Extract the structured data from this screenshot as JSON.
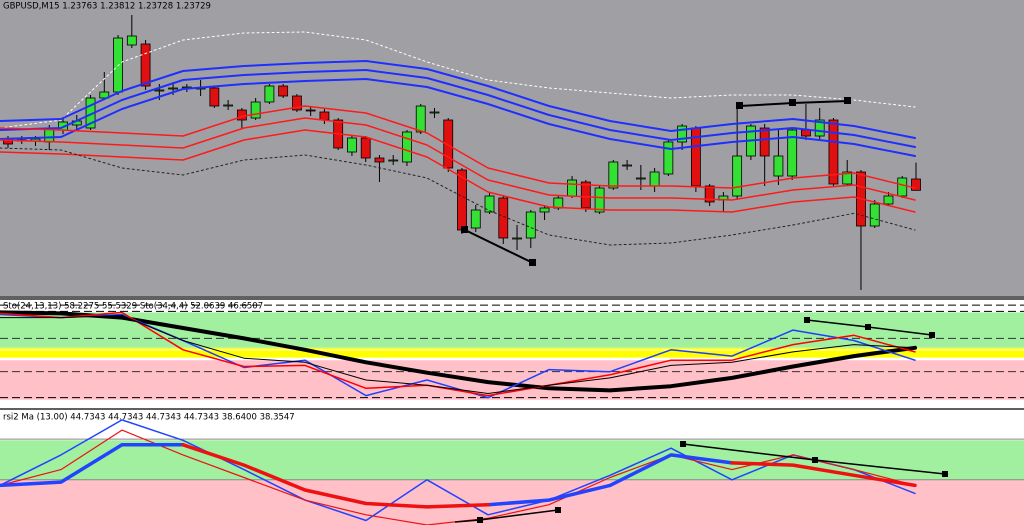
{
  "chart_data": [
    {
      "type": "candlestick",
      "title": "GBPUSD,M15  1.23763 1.23812 1.23728 1.23729",
      "background": "#a0a0a4",
      "up_color": "#33e033",
      "down_color": "#e01010",
      "ylim": [
        1.23415,
        1.243
      ],
      "open": [
        1.2388,
        1.2388,
        1.23877,
        1.23874,
        1.2391,
        1.23925,
        1.23916,
        1.24006,
        1.24024,
        1.24165,
        1.24168,
        1.2403,
        1.24036,
        1.24036,
        1.24036,
        1.24036,
        1.23985,
        1.2397,
        1.23946,
        1.23994,
        1.24042,
        1.24012,
        1.2397,
        1.23964,
        1.2394,
        1.23844,
        1.23886,
        1.23826,
        1.2382,
        1.23814,
        1.23904,
        1.23964,
        1.2394,
        1.2379,
        1.23616,
        1.23664,
        1.23706,
        1.23586,
        1.23586,
        1.23664,
        1.23676,
        1.23712,
        1.23754,
        1.23664,
        1.23736,
        1.23805,
        1.23766,
        1.23742,
        1.23778,
        1.23874,
        1.23916,
        1.23742,
        1.237,
        1.23712,
        1.23832,
        1.23916,
        1.23772,
        1.23772,
        1.2391,
        1.23892,
        1.2394,
        1.23748,
        1.23784,
        1.23622,
        1.23688,
        1.23712,
        1.23763
      ],
      "high": [
        1.23892,
        1.23892,
        1.23892,
        1.23925,
        1.23946,
        1.23955,
        1.24015,
        1.24084,
        1.24195,
        1.24255,
        1.2418,
        1.24048,
        1.24054,
        1.24048,
        1.2406,
        1.24042,
        1.24,
        1.23976,
        1.24006,
        1.24048,
        1.24048,
        1.24018,
        1.23982,
        1.23976,
        1.23946,
        1.23892,
        1.23892,
        1.23835,
        1.23835,
        1.2391,
        1.23988,
        1.23976,
        1.23946,
        1.23796,
        1.23685,
        1.23724,
        1.23712,
        1.23625,
        1.2367,
        1.23685,
        1.23715,
        1.23772,
        1.2376,
        1.23742,
        1.2382,
        1.2382,
        1.23805,
        1.23796,
        1.2388,
        1.23928,
        1.23922,
        1.23748,
        1.23724,
        1.23976,
        1.23928,
        1.23928,
        1.2391,
        1.23916,
        1.23988,
        1.23976,
        1.23946,
        1.2382,
        1.2379,
        1.237,
        1.23724,
        1.23772,
        1.23812
      ],
      "low": [
        1.23856,
        1.23868,
        1.23862,
        1.2385,
        1.23898,
        1.2391,
        1.2391,
        1.24,
        1.24015,
        1.24156,
        1.2403,
        1.24,
        1.24015,
        1.24024,
        1.24012,
        1.23976,
        1.2397,
        1.23916,
        1.2394,
        1.23988,
        1.24006,
        1.23964,
        1.23952,
        1.23928,
        1.2385,
        1.23832,
        1.23814,
        1.23754,
        1.23805,
        1.23802,
        1.23898,
        1.23946,
        1.23784,
        1.23598,
        1.23604,
        1.23658,
        1.23568,
        1.2355,
        1.23556,
        1.2364,
        1.2367,
        1.23706,
        1.23664,
        1.23658,
        1.2373,
        1.2379,
        1.2373,
        1.23724,
        1.23772,
        1.2385,
        1.23724,
        1.23682,
        1.23664,
        1.237,
        1.2382,
        1.23742,
        1.23745,
        1.2376,
        1.2388,
        1.2388,
        1.23742,
        1.23742,
        1.2343,
        1.23616,
        1.23682,
        1.23706,
        1.23728
      ],
      "close": [
        1.23868,
        1.2388,
        1.23883,
        1.23916,
        1.23934,
        1.23937,
        1.24006,
        1.24024,
        1.24186,
        1.24192,
        1.24042,
        1.2403,
        1.24036,
        1.24039,
        1.24036,
        1.23982,
        1.23985,
        1.2394,
        1.23994,
        1.24042,
        1.24012,
        1.2397,
        1.23967,
        1.2394,
        1.23856,
        1.23886,
        1.23826,
        1.23814,
        1.2382,
        1.23904,
        1.23982,
        1.23964,
        1.23796,
        1.2361,
        1.2367,
        1.23712,
        1.23586,
        1.23586,
        1.23664,
        1.23676,
        1.23706,
        1.2376,
        1.23676,
        1.23736,
        1.23814,
        1.23805,
        1.23766,
        1.23784,
        1.23874,
        1.23922,
        1.23742,
        1.23694,
        1.23712,
        1.23832,
        1.23922,
        1.23832,
        1.23832,
        1.2391,
        1.23892,
        1.2394,
        1.23748,
        1.23784,
        1.23622,
        1.23688,
        1.23712,
        1.23766,
        1.23729
      ],
      "series": [
        {
          "color": "#ffffff",
          "width": 1,
          "dash": true,
          "values": [
            1.23916,
            1.2394,
            1.24114,
            1.2418,
            1.24201,
            1.24204,
            1.2418,
            1.24114,
            1.2406,
            1.24036,
            1.24021,
            1.24006,
            1.24015,
            1.24015,
            1.24,
            1.23979
          ]
        },
        {
          "color": "#1f2fff",
          "width": 2,
          "values": [
            1.23937,
            1.23943,
            1.24027,
            1.24087,
            1.24102,
            1.24111,
            1.24117,
            1.24093,
            1.24042,
            1.23982,
            1.23937,
            1.23907,
            1.23928,
            1.23943,
            1.23922,
            1.23886
          ]
        },
        {
          "color": "#1f2fff",
          "width": 2,
          "values": [
            1.2391,
            1.23916,
            1.24,
            1.2406,
            1.24075,
            1.24084,
            1.2409,
            1.24066,
            1.24015,
            1.23955,
            1.2391,
            1.2388,
            1.23901,
            1.23916,
            1.23895,
            1.23859
          ]
        },
        {
          "color": "#1f2fff",
          "width": 2,
          "values": [
            1.23883,
            1.23889,
            1.23973,
            1.24033,
            1.24048,
            1.24057,
            1.24063,
            1.24039,
            1.23988,
            1.23928,
            1.23883,
            1.23853,
            1.23874,
            1.23889,
            1.23868,
            1.23832
          ]
        },
        {
          "color": "#ff1a1a",
          "width": 1.5,
          "values": [
            1.23916,
            1.2391,
            1.23901,
            1.23892,
            1.23952,
            1.23982,
            1.23961,
            1.23901,
            1.23796,
            1.23751,
            1.23742,
            1.23742,
            1.23736,
            1.23766,
            1.23781,
            1.23736
          ]
        },
        {
          "color": "#ff1a1a",
          "width": 1.5,
          "values": [
            1.2388,
            1.23874,
            1.23865,
            1.23856,
            1.23916,
            1.23946,
            1.23925,
            1.23865,
            1.2376,
            1.23715,
            1.23706,
            1.23706,
            1.237,
            1.2373,
            1.23745,
            1.237
          ]
        },
        {
          "color": "#ff1a1a",
          "width": 1.5,
          "values": [
            1.23844,
            1.23838,
            1.23829,
            1.2382,
            1.2388,
            1.2391,
            1.23889,
            1.23829,
            1.23724,
            1.23679,
            1.2367,
            1.2367,
            1.23664,
            1.23694,
            1.23709,
            1.23664
          ]
        },
        {
          "color": "#222222",
          "width": 1,
          "dash": true,
          "values": [
            1.23856,
            1.2385,
            1.23796,
            1.23775,
            1.2382,
            1.23835,
            1.23805,
            1.23766,
            1.2367,
            1.23595,
            1.23565,
            1.23571,
            1.23595,
            1.23625,
            1.2366,
            1.2361
          ]
        }
      ]
    },
    {
      "type": "line",
      "title": "Sto(24,13,13) 58.2275 55.5329  Sto(34,4,4) 52.0639 46.6507",
      "background": "#ffffff",
      "ylim": [
        0,
        100
      ],
      "zones": [
        {
          "from": 56,
          "to": 90,
          "color": "#a0f0a0"
        },
        {
          "from": 46,
          "to": 56,
          "color": "#ffff00"
        },
        {
          "from": 6,
          "to": 44,
          "color": "#ffc0c8"
        }
      ],
      "levels": [
        {
          "value": 97,
          "color": "#000000",
          "dash": true
        },
        {
          "value": 91,
          "color": "#000000",
          "dash": true
        },
        {
          "value": 65,
          "color": "#333333",
          "dash": true
        },
        {
          "value": 54,
          "color": "#ffffff",
          "dash": false
        },
        {
          "value": 46,
          "color": "#ffffff",
          "dash": false
        },
        {
          "value": 33,
          "color": "#333333",
          "dash": true
        },
        {
          "value": 8,
          "color": "#000000",
          "dash": true
        }
      ],
      "series": [
        {
          "color": "#000000",
          "width": 4,
          "values": [
            90,
            89,
            85,
            75,
            65,
            54,
            42,
            32,
            23,
            17,
            15,
            19,
            27,
            38,
            48,
            56
          ]
        },
        {
          "color": "#1f3fff",
          "width": 1.5,
          "values": [
            88,
            85,
            88,
            63,
            37,
            44,
            10,
            25,
            8,
            35,
            33,
            54,
            48,
            73,
            63,
            44
          ]
        },
        {
          "color": "#ff0000",
          "width": 1.5,
          "values": [
            89,
            85,
            90,
            54,
            38,
            39,
            17,
            20,
            10,
            20,
            30,
            44,
            44,
            59,
            68,
            52
          ]
        },
        {
          "color": "#000000",
          "width": 1,
          "values": [
            85,
            85,
            87,
            63,
            46,
            42,
            25,
            20,
            12,
            20,
            27,
            39,
            42,
            52,
            59,
            56
          ]
        }
      ]
    },
    {
      "type": "line",
      "title": "rsi2 Ma (13.00) 44.7343 44.7343 44.7343 44.7343 38.6400 38.3547",
      "background": "#ffffff",
      "ylim": [
        0,
        100
      ],
      "zones": [
        {
          "from": 40,
          "to": 75,
          "color": "#a0f0a0"
        },
        {
          "from": 0,
          "to": 40,
          "color": "#ffc0c8"
        }
      ],
      "levels": [
        {
          "value": 76,
          "color": "#888888",
          "dash": false
        },
        {
          "value": 40,
          "color": "#888888",
          "dash": false
        }
      ],
      "series": [
        {
          "color": "#2244ff",
          "width": 1.5,
          "values": [
            35,
            62,
            93,
            75,
            49,
            22,
            4,
            40,
            9,
            22,
            44,
            68,
            40,
            62,
            49,
            28
          ]
        },
        {
          "color": "#ee1111",
          "width": 1.2,
          "values": [
            35,
            49,
            84,
            62,
            42,
            22,
            9,
            0,
            6,
            18,
            42,
            62,
            49,
            62,
            49,
            35
          ]
        },
        {
          "color": "#2244ff",
          "width": 3.5,
          "values": [
            35,
            38,
            71,
            71,
            null,
            null,
            null,
            null,
            18,
            22,
            35,
            62,
            55,
            null,
            null,
            null
          ]
        },
        {
          "color": "#ee1111",
          "width": 3.5,
          "values": [
            null,
            null,
            null,
            71,
            53,
            31,
            19,
            16,
            18,
            null,
            null,
            null,
            55,
            53,
            44,
            35
          ]
        }
      ]
    }
  ]
}
